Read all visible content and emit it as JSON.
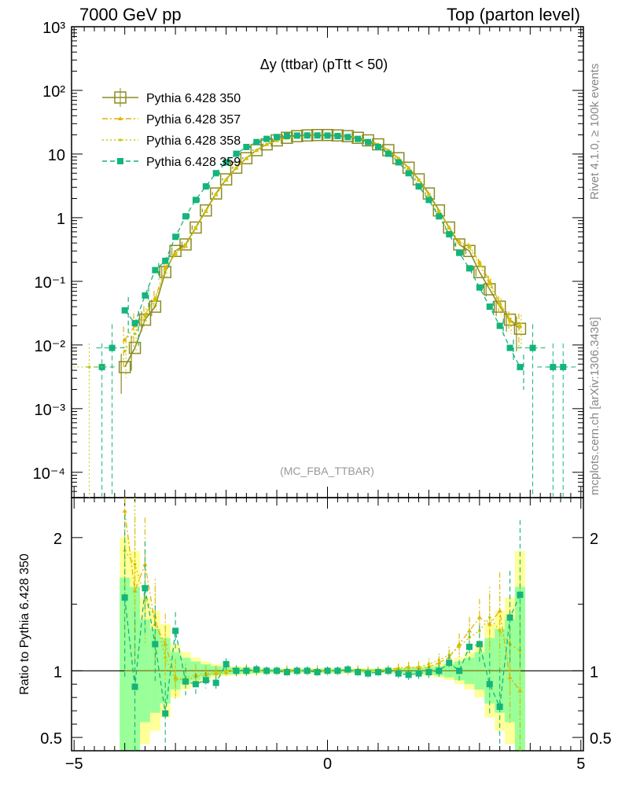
{
  "header": {
    "left": "7000 GeV pp",
    "right": "Top (parton level)"
  },
  "side_labels": {
    "rivet": "Rivet 4.1.0, ≥ 100k events",
    "mcplots": "mcplots.cern.ch [arXiv:1306.3436]"
  },
  "chart_data": {
    "type": "line",
    "title": "Δy (ttbar) (pTtt < 50)",
    "analysis_label": "(MC_FBA_TTBAR)",
    "xlabel": "",
    "ylabel": "",
    "ratio_ylabel": "Ratio to Pythia 6.428 350",
    "xlim": [
      -5.05,
      5.05
    ],
    "ylim_log": [
      4e-05,
      1000
    ],
    "ratio_ylim": [
      0.4,
      2.3
    ],
    "x_ticks": [
      "−5",
      "0",
      "5"
    ],
    "y_ticks": [
      "10⁻⁴",
      "10⁻³",
      "10⁻²",
      "10⁻¹",
      "1",
      "10",
      "10²",
      "10³"
    ],
    "ratio_ticks": [
      "0.5",
      "1",
      "2"
    ],
    "legend_position": "top-left",
    "bin_centers": [
      -4.0,
      -3.8,
      -3.6,
      -3.4,
      -3.2,
      -3.0,
      -2.8,
      -2.6,
      -2.4,
      -2.2,
      -2.0,
      -1.8,
      -1.6,
      -1.4,
      -1.2,
      -1.0,
      -0.8,
      -0.6,
      -0.4,
      -0.2,
      0.0,
      0.2,
      0.4,
      0.6,
      0.8,
      1.0,
      1.2,
      1.4,
      1.6,
      1.8,
      2.0,
      2.2,
      2.4,
      2.6,
      2.8,
      3.0,
      3.2,
      3.4,
      3.6,
      3.8
    ],
    "series": [
      {
        "name": "Pythia 6.428 350",
        "color": "#8b8b22",
        "style": "solid",
        "marker": "open-square",
        "values": [
          0.0045,
          0.009,
          0.025,
          0.04,
          0.14,
          0.3,
          0.38,
          0.7,
          1.3,
          2.4,
          4.0,
          6.1,
          8.6,
          11.5,
          14.2,
          16.4,
          18.0,
          19.1,
          19.6,
          19.9,
          19.9,
          19.6,
          19.1,
          18.0,
          16.4,
          14.2,
          11.5,
          8.6,
          6.1,
          4.0,
          2.4,
          1.3,
          0.7,
          0.38,
          0.3,
          0.14,
          0.075,
          0.04,
          0.025,
          0.018
        ],
        "ratio": [
          1.0,
          1.0,
          1.0,
          1.0,
          1.0,
          1.0,
          1.0,
          1.0,
          1.0,
          1.0,
          1.0,
          1.0,
          1.0,
          1.0,
          1.0,
          1.0,
          1.0,
          1.0,
          1.0,
          1.0,
          1.0,
          1.0,
          1.0,
          1.0,
          1.0,
          1.0,
          1.0,
          1.0,
          1.0,
          1.0,
          1.0,
          1.0,
          1.0,
          1.0,
          1.0,
          1.0,
          1.0,
          1.0,
          1.0,
          1.0
        ]
      },
      {
        "name": "Pythia 6.428 357",
        "color": "#e0b400",
        "style": "dashdot",
        "marker": "small-triangle",
        "values": [
          0.012,
          0.02,
          0.03,
          0.055,
          0.16,
          0.27,
          0.36,
          0.68,
          1.25,
          2.3,
          3.9,
          6.0,
          8.5,
          11.4,
          14.1,
          16.3,
          17.9,
          19.0,
          19.5,
          19.8,
          19.8,
          19.5,
          19.0,
          17.9,
          16.3,
          14.1,
          11.4,
          8.5,
          6.0,
          3.9,
          2.3,
          1.25,
          0.7,
          0.42,
          0.36,
          0.2,
          0.1,
          0.045,
          0.025,
          0.02
        ],
        "ratio": [
          2.2,
          1.6,
          1.8,
          1.35,
          1.2,
          0.95,
          0.92,
          0.96,
          0.97,
          0.98,
          0.99,
          1.0,
          1.01,
          1.0,
          1.0,
          1.0,
          1.01,
          1.0,
          1.0,
          1.01,
          1.0,
          1.0,
          1.0,
          1.01,
          1.0,
          1.0,
          1.01,
          1.02,
          1.03,
          1.02,
          1.03,
          1.06,
          1.1,
          1.2,
          1.3,
          1.4,
          1.35,
          1.45,
          0.95,
          0.85
        ]
      },
      {
        "name": "Pythia 6.428 358",
        "color": "#c8c800",
        "style": "dotted",
        "marker": "small-dot",
        "values": [
          0.008,
          0.015,
          0.028,
          0.05,
          0.15,
          0.28,
          0.37,
          0.7,
          1.27,
          2.35,
          3.95,
          6.05,
          8.55,
          11.45,
          14.15,
          16.35,
          17.95,
          19.05,
          19.55,
          19.85,
          19.85,
          19.55,
          19.05,
          17.95,
          16.35,
          14.15,
          11.45,
          8.55,
          6.05,
          3.95,
          2.35,
          1.27,
          0.68,
          0.4,
          0.34,
          0.18,
          0.09,
          0.042,
          0.023,
          0.019
        ],
        "ratio": [
          1.9,
          1.8,
          1.55,
          1.4,
          1.1,
          0.93,
          0.95,
          0.97,
          0.98,
          0.99,
          1.0,
          1.0,
          1.0,
          1.0,
          1.0,
          1.0,
          1.0,
          1.0,
          1.0,
          1.0,
          1.0,
          1.0,
          1.0,
          1.0,
          1.0,
          1.0,
          1.0,
          1.01,
          1.02,
          1.03,
          1.05,
          1.08,
          1.12,
          1.18,
          1.25,
          1.3,
          1.4,
          1.3,
          1.2,
          1.15
        ]
      },
      {
        "name": "Pythia 6.428 359",
        "color": "#14b47a",
        "style": "dashed",
        "marker": "filled-square",
        "values": [
          0.035,
          0.022,
          0.06,
          0.15,
          0.21,
          0.5,
          1.05,
          1.9,
          3.1,
          5.0,
          7.4,
          10.1,
          12.9,
          15.4,
          17.3,
          18.5,
          19.2,
          19.5,
          19.6,
          19.6,
          19.5,
          19.2,
          18.5,
          17.3,
          15.4,
          12.9,
          10.1,
          7.4,
          5.0,
          3.1,
          1.9,
          1.05,
          0.55,
          0.28,
          0.16,
          0.08,
          0.04,
          0.02,
          0.009,
          0.0045
        ],
        "ratio": [
          1.55,
          0.88,
          1.62,
          1.2,
          0.68,
          1.3,
          0.92,
          0.9,
          0.93,
          0.91,
          1.05,
          1.0,
          1.0,
          1.01,
          1.0,
          1.0,
          0.99,
          1.0,
          1.0,
          0.99,
          1.0,
          1.0,
          1.01,
          0.99,
          0.98,
          0.99,
          1.0,
          0.98,
          0.97,
          0.98,
          0.99,
          1.0,
          1.06,
          1.0,
          1.18,
          1.2,
          0.9,
          0.73,
          1.4,
          1.57
        ]
      }
    ],
    "extra_points": [
      {
        "series": "Pythia 6.428 359",
        "x": -4.45,
        "y": 0.0045
      },
      {
        "series": "Pythia 6.428 359",
        "x": -4.25,
        "y": 0.009
      },
      {
        "series": "Pythia 6.428 359",
        "x": 4.05,
        "y": 0.009
      },
      {
        "series": "Pythia 6.428 359",
        "x": 4.45,
        "y": 0.0045
      },
      {
        "series": "Pythia 6.428 359",
        "x": 4.65,
        "y": 0.0045
      },
      {
        "series": "Pythia 6.428 358",
        "x": -4.7,
        "y": 0.0045
      }
    ],
    "uncertainty_band_ratio": {
      "inner_color": "#99ff99",
      "outer_color": "#ffff99",
      "half_width": [
        1.0,
        0.9,
        0.55,
        0.45,
        0.35,
        0.2,
        0.14,
        0.1,
        0.07,
        0.05,
        0.04,
        0.035,
        0.03,
        0.025,
        0.02,
        0.02,
        0.02,
        0.02,
        0.02,
        0.02,
        0.02,
        0.02,
        0.02,
        0.02,
        0.02,
        0.02,
        0.02,
        0.025,
        0.03,
        0.035,
        0.04,
        0.05,
        0.07,
        0.1,
        0.14,
        0.2,
        0.35,
        0.45,
        0.55,
        0.9
      ]
    }
  }
}
